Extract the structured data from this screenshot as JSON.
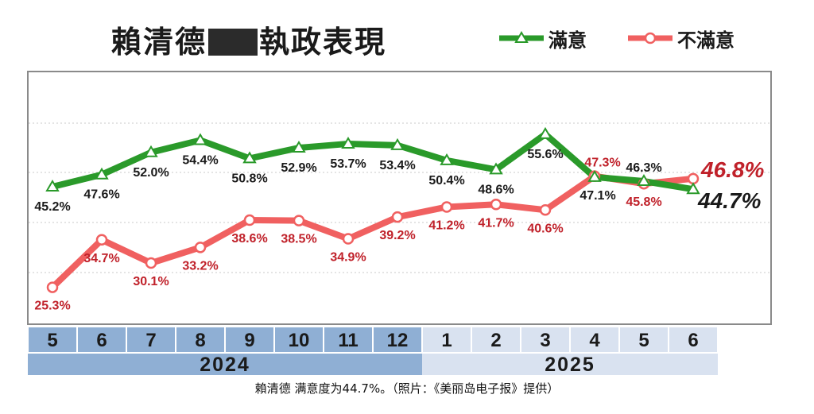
{
  "title_left": "賴清德",
  "title_right": "執政表現",
  "legend": {
    "satisfied": "滿意",
    "dissatisfied": "不滿意"
  },
  "colors": {
    "satisfied": "#2a9a2a",
    "dissatisfied": "#f06060",
    "dissatisfied_label": "#c0212a",
    "axis_band_2024": "#8fafd4",
    "axis_band_2025": "#d9e2f0"
  },
  "caption": "賴清德 满意度为44.7%。（照片：《美丽岛电子报》提供）",
  "chart_data": {
    "type": "line",
    "title": "賴清德 執政表現",
    "categories": [
      "5",
      "6",
      "7",
      "8",
      "9",
      "10",
      "11",
      "12",
      "1",
      "2",
      "3",
      "4",
      "5",
      "6"
    ],
    "years": [
      {
        "label": "2024",
        "months": [
          "5",
          "6",
          "7",
          "8",
          "9",
          "10",
          "11",
          "12"
        ]
      },
      {
        "label": "2025",
        "months": [
          "1",
          "2",
          "3",
          "4",
          "5",
          "6"
        ]
      }
    ],
    "series": [
      {
        "name": "滿意",
        "marker": "triangle",
        "values": [
          45.2,
          47.6,
          52.0,
          54.4,
          50.8,
          52.9,
          53.7,
          53.4,
          50.4,
          48.6,
          55.6,
          47.1,
          46.3,
          44.7
        ],
        "labels": [
          "45.2%",
          "47.6%",
          "52.0%",
          "54.4%",
          "50.8%",
          "52.9%",
          "53.7%",
          "53.4%",
          "50.4%",
          "48.6%",
          "55.6%",
          "47.1%",
          "46.3%",
          "44.7%"
        ]
      },
      {
        "name": "不滿意",
        "marker": "circle",
        "values": [
          25.3,
          34.7,
          30.1,
          33.2,
          38.6,
          38.5,
          34.9,
          39.2,
          41.2,
          41.7,
          40.6,
          47.3,
          45.8,
          46.8
        ],
        "labels": [
          "25.3%",
          "34.7%",
          "30.1%",
          "33.2%",
          "38.6%",
          "38.5%",
          "34.9%",
          "39.2%",
          "41.2%",
          "41.7%",
          "40.6%",
          "47.3%",
          "45.8%",
          "46.8%"
        ]
      }
    ],
    "ylim": [
      18,
      68
    ],
    "grid": true,
    "legend_position": "top-right"
  }
}
